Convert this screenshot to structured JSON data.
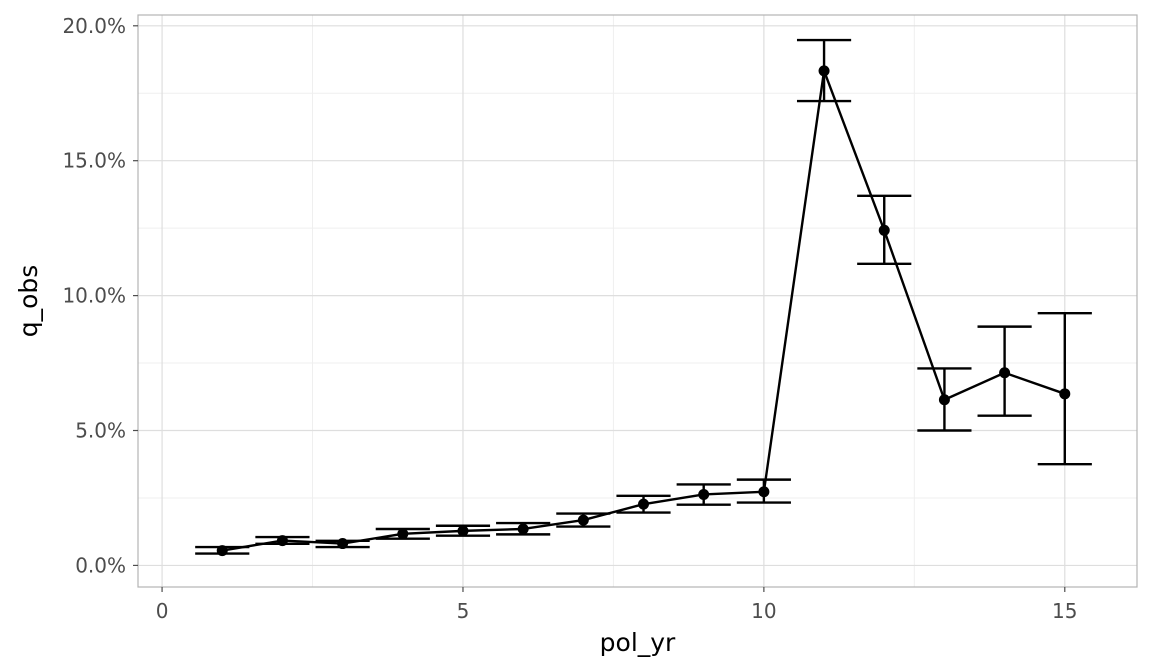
{
  "chart_data": {
    "type": "line",
    "xlabel": "pol_yr",
    "ylabel": "q_obs",
    "xlim": [
      -0.4,
      16.2
    ],
    "ylim": [
      -0.008,
      0.204
    ],
    "x_ticks": [
      0,
      5,
      10,
      15
    ],
    "x_tick_labels": [
      "0",
      "5",
      "10",
      "15"
    ],
    "y_ticks": [
      0.0,
      0.05,
      0.1,
      0.15,
      0.2
    ],
    "y_tick_labels": [
      "0.0%",
      "5.0%",
      "10.0%",
      "15.0%",
      "20.0%"
    ],
    "grid": true,
    "legend": "none",
    "colors": {
      "series": "#000000",
      "panel_border": "#b3b3b3",
      "grid_major": "#dedede",
      "grid_minor": "#efefef"
    },
    "series": [
      {
        "x": [
          1,
          2,
          3,
          4,
          5,
          6,
          7,
          8,
          9,
          10,
          11,
          12,
          13,
          14,
          15
        ],
        "y": [
          0.0055,
          0.0092,
          0.0081,
          0.0117,
          0.0128,
          0.0135,
          0.0168,
          0.0227,
          0.0263,
          0.0273,
          0.1833,
          0.1242,
          0.0614,
          0.0714,
          0.0636
        ],
        "error_lower": [
          0.0044,
          0.008,
          0.0068,
          0.0099,
          0.011,
          0.0115,
          0.0144,
          0.0196,
          0.0225,
          0.0233,
          0.1721,
          0.1118,
          0.05,
          0.0555,
          0.0375
        ],
        "error_upper": [
          0.0068,
          0.0105,
          0.0091,
          0.0135,
          0.0147,
          0.0157,
          0.0192,
          0.0258,
          0.03,
          0.0318,
          0.1947,
          0.137,
          0.073,
          0.0885,
          0.0935
        ]
      }
    ]
  }
}
